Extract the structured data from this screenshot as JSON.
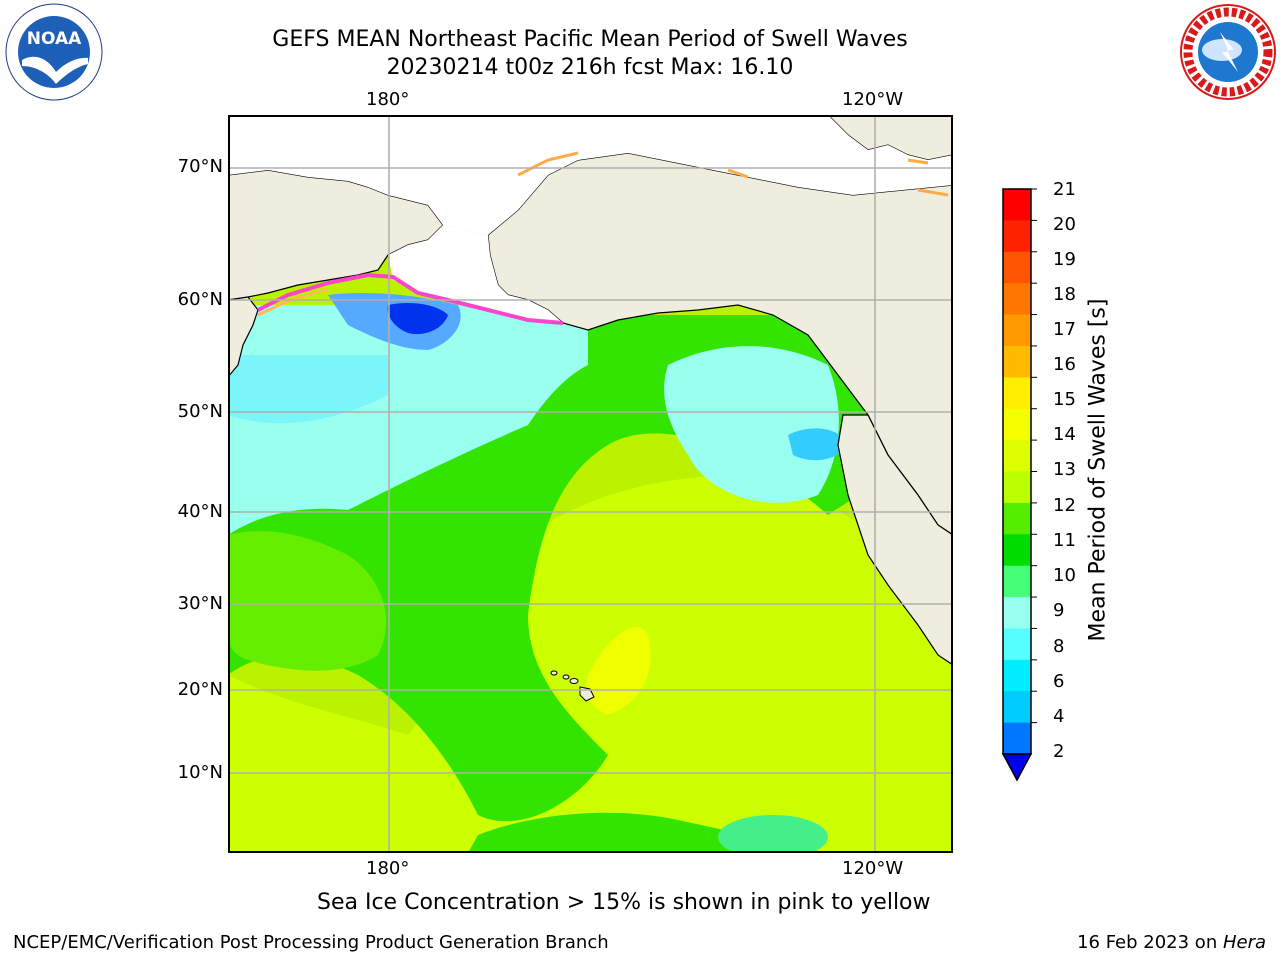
{
  "title": {
    "line1": "GEFS MEAN Northeast Pacific Mean Period of Swell Waves",
    "line2": "20230214 t00z 216h fcst   Max: 16.10"
  },
  "map": {
    "lon_labels_top": [
      "180°",
      "120°W"
    ],
    "lon_labels_bottom": [
      "180°",
      "120°W"
    ],
    "lat_labels": [
      "70°N",
      "60°N",
      "50°N",
      "40°N",
      "30°N",
      "20°N",
      "10°N"
    ],
    "colors": {
      "land": "#efedde",
      "ice_free_white": "#ffffff",
      "grid": "#b0b0b0"
    }
  },
  "colorbar": {
    "label": "Mean Period of Swell Waves [s]",
    "ticks": [
      "21",
      "20",
      "19",
      "18",
      "17",
      "16",
      "15",
      "14",
      "13",
      "12",
      "11",
      "10",
      "9",
      "8",
      "6",
      "4",
      "2"
    ],
    "colors": [
      "#ff0000",
      "#ff2200",
      "#ff5500",
      "#ff7700",
      "#ff9900",
      "#ffbb00",
      "#ffee00",
      "#f5ff00",
      "#ddff00",
      "#bbff00",
      "#55ee00",
      "#00dd00",
      "#44ff77",
      "#99ffee",
      "#55ffff",
      "#00eeff",
      "#00ccff",
      "#0077ff",
      "#0000ee"
    ]
  },
  "notes": {
    "ice": "Sea Ice Concentration > 15% is shown in pink to yellow"
  },
  "footer": {
    "left": "NCEP/EMC/Verification Post Processing Product Generation Branch",
    "right_prefix": "16 Feb 2023 on ",
    "right_host": "Hera"
  },
  "logos": {
    "noaa_text": "NOAA",
    "nws_ring_text": "NATIONAL WEATHER SERVICE"
  }
}
